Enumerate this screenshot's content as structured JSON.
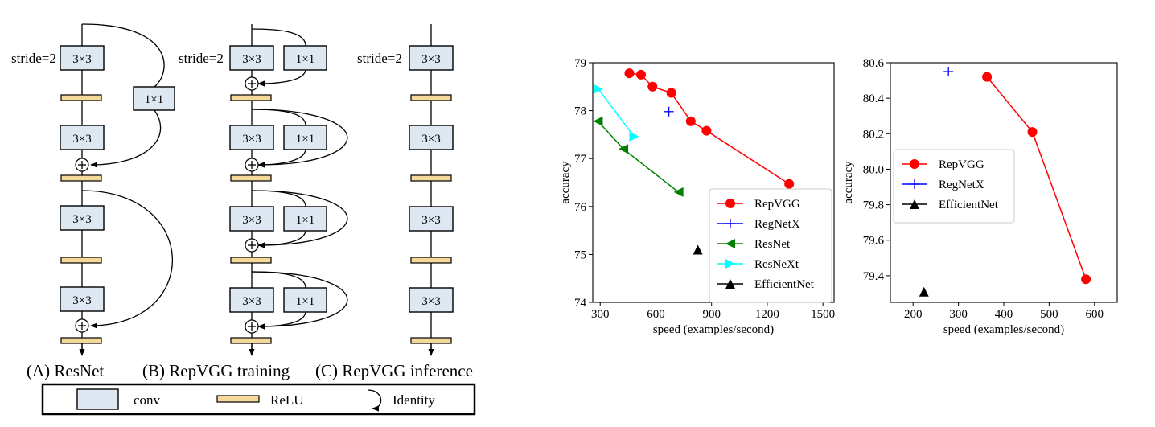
{
  "diagram": {
    "conv_label": "3×3",
    "branch_label": "1×1",
    "stride_label": "stride=2",
    "panel_a": "(A) ResNet",
    "panel_b": "(B) RepVGG training",
    "panel_c": "(C) RepVGG inference",
    "legend": {
      "conv": "conv",
      "relu": "ReLU",
      "identity": "Identity"
    },
    "colors": {
      "conv": "#dde8f3",
      "relu": "#f5d99a"
    }
  },
  "chart_data": [
    {
      "type": "line",
      "xlabel": "speed (examples/second)",
      "ylabel": "accuracy",
      "xlim": [
        260,
        1560
      ],
      "ylim": [
        74,
        79
      ],
      "xticks": [
        300,
        600,
        900,
        1200,
        1500
      ],
      "yticks": [
        74,
        75,
        76,
        77,
        78,
        79
      ],
      "legend_position": "lower-right",
      "series": [
        {
          "name": "RepVGG",
          "color": "#ff0000",
          "marker": "circle",
          "connect": true,
          "points": [
            [
              457,
              78.78
            ],
            [
              520,
              78.75
            ],
            [
              582,
              78.5
            ],
            [
              683,
              78.37
            ],
            [
              788,
              77.78
            ],
            [
              873,
              77.58
            ],
            [
              1318,
              76.47
            ]
          ]
        },
        {
          "name": "RegNetX",
          "color": "#0000ff",
          "marker": "plus",
          "connect": false,
          "points": [
            [
              670,
              77.98
            ]
          ]
        },
        {
          "name": "ResNet",
          "color": "#008000",
          "marker": "triangle-left",
          "connect": true,
          "points": [
            [
              288,
              77.78
            ],
            [
              425,
              77.2
            ],
            [
              722,
              76.3
            ]
          ]
        },
        {
          "name": "ResNeXt",
          "color": "#00ffff",
          "marker": "triangle-right",
          "connect": true,
          "points": [
            [
              290,
              78.45
            ],
            [
              483,
              77.46
            ]
          ]
        },
        {
          "name": "EfficientNet",
          "color": "#000000",
          "marker": "triangle-up",
          "connect": false,
          "points": [
            [
              826,
              75.1
            ]
          ]
        }
      ]
    },
    {
      "type": "line",
      "xlabel": "speed (examples/second)",
      "ylabel": "accuracy",
      "xlim": [
        150,
        650
      ],
      "ylim": [
        79.25,
        80.6
      ],
      "xticks": [
        200,
        300,
        400,
        500,
        600
      ],
      "yticks": [
        79.4,
        79.6,
        79.8,
        80.0,
        80.2,
        80.4,
        80.6
      ],
      "legend_position": "upper-left",
      "series": [
        {
          "name": "RepVGG",
          "color": "#ff0000",
          "marker": "circle",
          "connect": true,
          "points": [
            [
              363,
              80.52
            ],
            [
              463,
              80.21
            ],
            [
              581,
              79.38
            ]
          ]
        },
        {
          "name": "RegNetX",
          "color": "#0000ff",
          "marker": "plus",
          "connect": false,
          "points": [
            [
              278,
              80.55
            ]
          ]
        },
        {
          "name": "EfficientNet",
          "color": "#000000",
          "marker": "triangle-up",
          "connect": false,
          "points": [
            [
              224,
              79.31
            ]
          ]
        }
      ]
    }
  ]
}
